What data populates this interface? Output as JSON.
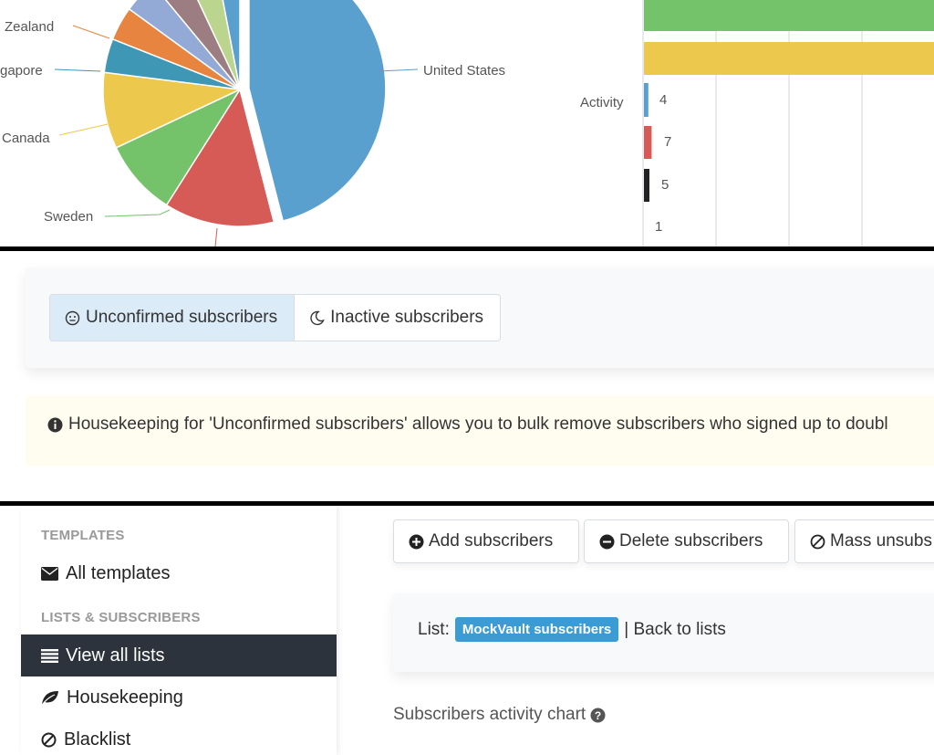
{
  "chart_data": [
    {
      "type": "pie",
      "labels": [
        "Zealand",
        "gapore",
        "Canada",
        "Sweden",
        "United States"
      ],
      "slices": [
        {
          "label": "United States",
          "value": 46,
          "color": "#59a0cf"
        },
        {
          "label": "",
          "value": 13,
          "color": "#d65a56"
        },
        {
          "label": "Sweden",
          "value": 9,
          "color": "#74c26a"
        },
        {
          "label": "Canada",
          "value": 9,
          "color": "#ecc94c"
        },
        {
          "label": "",
          "value": 4,
          "color": "#3e97b5"
        },
        {
          "label": "",
          "value": 4,
          "color": "#e68440"
        },
        {
          "label": "",
          "value": 4,
          "color": "#93a9d6"
        },
        {
          "label": "",
          "value": 4,
          "color": "#9c7e82"
        },
        {
          "label": "",
          "value": 4,
          "color": "#bbd58f"
        },
        {
          "label": "",
          "value": 3,
          "color": "#59a0cf"
        }
      ]
    },
    {
      "type": "bar",
      "orientation": "horizontal",
      "ylabel": "Activity",
      "bars": [
        {
          "label": "",
          "value": null,
          "color": "#74c26a"
        },
        {
          "label": "",
          "value": null,
          "color": "#ecc94c"
        },
        {
          "label": "4",
          "value": 4,
          "color": "#59a0cf"
        },
        {
          "label": "7",
          "value": 7,
          "color": "#d65a56"
        },
        {
          "label": "5",
          "value": 5,
          "color": "#222222"
        },
        {
          "label": "1",
          "value": 1,
          "color": "#ffffff"
        }
      ]
    }
  ],
  "tabs": {
    "unconfirmed": "Unconfirmed subscribers",
    "inactive": "Inactive subscribers"
  },
  "notice": {
    "text": "Housekeeping for 'Unconfirmed subscribers' allows you to bulk remove subscribers who signed up to doubl"
  },
  "sidebar": {
    "section_templates": "TEMPLATES",
    "all_templates": "All templates",
    "section_lists": "LISTS & SUBSCRIBERS",
    "view_all_lists": "View all lists",
    "housekeeping": "Housekeeping",
    "blacklist": "Blacklist"
  },
  "actions": {
    "add": "Add subscribers",
    "delete": "Delete subscribers",
    "mass_unsub": "Mass unsubs"
  },
  "list": {
    "prefix": "List:",
    "name": "MockVault subscribers",
    "back": "| Back to lists"
  },
  "activity_chart_title": "Subscribers activity chart",
  "colors": {
    "active_tab_bg": "#dcebf8",
    "sidebar_active_bg": "#2d333c",
    "badge": "#3a9bd5",
    "notice_bg": "#fffdf0"
  }
}
